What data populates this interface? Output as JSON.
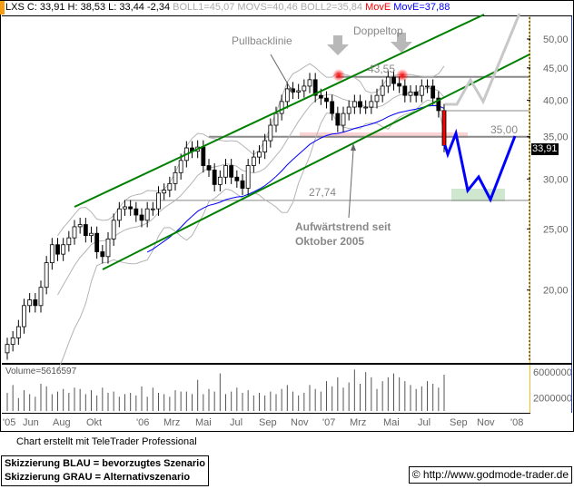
{
  "header": {
    "symbol": "LXS",
    "close": "C: 33,91",
    "high": "H: 38,53",
    "low": "L: 33,44",
    "change": "-2,34",
    "boll1": "BOLL1=45,07",
    "movs": "MOVS=40,46",
    "boll2": "BOLL2=35,84",
    "move_label": "MovE",
    "move_value": "MovE=37,88"
  },
  "chart_data": {
    "type": "candlestick",
    "y_scale": "log",
    "ylim": [
      15.6,
      58
    ],
    "yticks": [
      "50,00",
      "45,00",
      "40,00",
      "35,00",
      "30,00",
      "25,00",
      "20,00"
    ],
    "ytick_values": [
      50,
      45,
      40,
      35,
      30,
      25,
      20
    ],
    "xticks": [
      "'05",
      "Jun",
      "Aug",
      "Okt",
      "'06",
      "Mrz",
      "Mai",
      "Jul",
      "Sep",
      "Nov",
      "'07",
      "Mrz",
      "Mai",
      "Jul",
      "Sep",
      "Nov",
      "'08"
    ],
    "closes": [
      16.4,
      16.8,
      17.5,
      18.9,
      19.3,
      18.9,
      20.2,
      22.1,
      23.6,
      22.8,
      23.6,
      24.2,
      25.2,
      25.4,
      24.4,
      24.6,
      23.0,
      22.6,
      24.1,
      25.8,
      26.9,
      27.1,
      26.9,
      26.3,
      25.8,
      26.9,
      26.9,
      28.5,
      28.8,
      29.5,
      30.7,
      32.1,
      33.6,
      33.2,
      33.7,
      31.5,
      31.0,
      29.4,
      30.2,
      31.5,
      30.2,
      29.8,
      29.0,
      31.5,
      32.5,
      33.1,
      34.5,
      36.5,
      38.1,
      39.8,
      41.7,
      41.2,
      41.4,
      42.1,
      43.1,
      40.7,
      40.3,
      39.8,
      38.1,
      36.5,
      38.1,
      39.0,
      39.8,
      39.0,
      39.0,
      39.8,
      40.7,
      42.1,
      43.5,
      42.5,
      42.1,
      40.7,
      41.2,
      40.7,
      42.1,
      42.1,
      40.3,
      38.5,
      33.91
    ],
    "volume_label": "Volume=5616597",
    "volume_ticks": [
      "6000000",
      "2000000"
    ],
    "volume_tick_values": [
      6000000,
      2000000
    ],
    "volumes": [
      2.8,
      4.0,
      2.0,
      3.2,
      2.6,
      2.2,
      4.2,
      3.8,
      2.6,
      3.0,
      3.4,
      2.8,
      3.6,
      3.4,
      2.6,
      3.2,
      2.4,
      3.6,
      2.8,
      3.0,
      2.2,
      2.6,
      2.8,
      2.4,
      3.8,
      2.2,
      3.6,
      2.8,
      2.6,
      2.2,
      3.2,
      3.0,
      3.0,
      2.6,
      4.8,
      2.6,
      3.4,
      3.0,
      5.8,
      2.6,
      3.0,
      3.6,
      2.8,
      3.2,
      2.4,
      2.8,
      2.4,
      3.0,
      2.6,
      3.4,
      4.0,
      3.0,
      2.4,
      2.8,
      4.0,
      3.4,
      3.0,
      4.6,
      3.8,
      5.2,
      3.6,
      4.4,
      6.4,
      4.2,
      6.0,
      5.2,
      3.4,
      4.6,
      5.2,
      5.8,
      5.2,
      4.6,
      4.0,
      3.4,
      3.8,
      4.6,
      4.2,
      3.6,
      5.6
    ],
    "last_price": "33,91",
    "levels": {
      "top": "43,55",
      "support": "35,00",
      "target": "27,74"
    },
    "colors": {
      "channel": "#008000",
      "move": "#0000ff",
      "bollinger": "#b4b4b4",
      "preferred": "#0000ff",
      "alternative": "#c8c8c8",
      "breakdown": "#ff0000"
    }
  },
  "annotations": {
    "pullback": "Pullbacklinie",
    "doubletop": "Doppeltop",
    "trend_line1": "Aufwärtstrend seit",
    "trend_line2": "Oktober 2005"
  },
  "footer": {
    "credit": "Chart erstellt mit TeleTrader Professional",
    "legend_blue": "Skizzierung BLAU = bevorzugtes Szenario",
    "legend_gray": "Skizzierung GRAU = Alternativszenario",
    "copyright": "© http://www.godmode-trader.de"
  }
}
